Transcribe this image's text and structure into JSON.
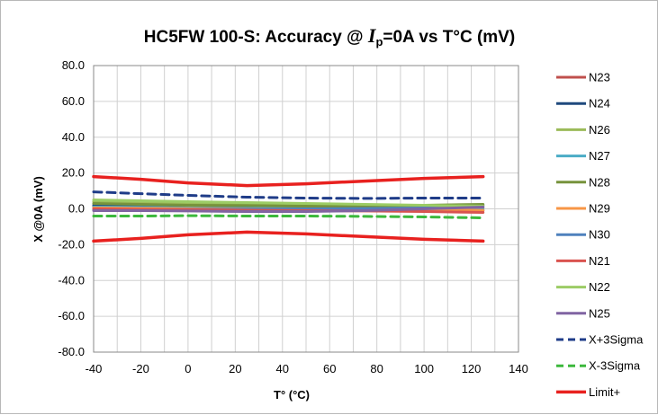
{
  "chart_data": {
    "type": "line",
    "title": {
      "prefix": "HC5FW 100-S:  Accuracy @ ",
      "symbol": "I",
      "subscript": "p",
      "suffix": "=0A vs T°C (mV)"
    },
    "xlabel": "T° (°C)",
    "ylabel": "X @0A  (mV)",
    "xlim": [
      -40,
      140
    ],
    "ylim": [
      -80,
      80
    ],
    "x_ticks": [
      "-40",
      "-20",
      "0",
      "20",
      "40",
      "60",
      "80",
      "100",
      "120",
      "140"
    ],
    "y_ticks": [
      "80.0",
      "60.0",
      "40.0",
      "20.0",
      "0.0",
      "-20.0",
      "-40.0",
      "-60.0",
      "-80.0"
    ],
    "grid": true,
    "legend_position": "right",
    "x": [
      -40,
      -20,
      0,
      25,
      50,
      75,
      100,
      125
    ],
    "series": [
      {
        "name": "N23",
        "color": "#c0504d",
        "dash": "solid",
        "values": [
          1.5,
          1.2,
          0.8,
          0.5,
          0.3,
          0.0,
          -0.5,
          -1.0
        ]
      },
      {
        "name": "N24",
        "color": "#1f497d",
        "dash": "solid",
        "values": [
          2.0,
          1.5,
          1.0,
          0.5,
          0.5,
          0.8,
          1.5,
          2.0
        ]
      },
      {
        "name": "N26",
        "color": "#9bbb59",
        "dash": "solid",
        "values": [
          4.0,
          3.5,
          3.0,
          2.5,
          2.5,
          2.0,
          1.0,
          0.5
        ]
      },
      {
        "name": "N27",
        "color": "#4bacc6",
        "dash": "solid",
        "values": [
          1.0,
          0.8,
          0.5,
          0.3,
          0.2,
          0.0,
          -0.3,
          -0.5
        ]
      },
      {
        "name": "N28",
        "color": "#77933c",
        "dash": "solid",
        "values": [
          3.0,
          2.5,
          2.0,
          1.8,
          1.5,
          1.5,
          2.0,
          2.5
        ]
      },
      {
        "name": "N29",
        "color": "#f79646",
        "dash": "solid",
        "values": [
          0.5,
          0.3,
          0.2,
          0.0,
          -0.2,
          -0.3,
          -0.5,
          -0.8
        ]
      },
      {
        "name": "N30",
        "color": "#4f81bd",
        "dash": "solid",
        "values": [
          -0.5,
          -0.5,
          -0.3,
          -0.2,
          0.0,
          0.2,
          0.5,
          1.0
        ]
      },
      {
        "name": "N21",
        "color": "#d9534f",
        "dash": "solid",
        "values": [
          0.0,
          -0.3,
          -0.5,
          -0.8,
          -1.0,
          -1.2,
          -1.5,
          -2.0
        ]
      },
      {
        "name": "N22",
        "color": "#9ccc65",
        "dash": "solid",
        "values": [
          5.0,
          4.5,
          4.0,
          3.5,
          3.0,
          2.5,
          2.0,
          1.5
        ]
      },
      {
        "name": "N25",
        "color": "#8064a2",
        "dash": "solid",
        "values": [
          -1.0,
          -1.0,
          -1.2,
          -1.5,
          -1.5,
          -1.0,
          0.0,
          1.0
        ]
      },
      {
        "name": "X+3Sigma",
        "color": "#1f3c88",
        "dash": "dashed",
        "values": [
          9.5,
          8.5,
          7.5,
          6.5,
          6.0,
          5.8,
          6.0,
          6.0
        ]
      },
      {
        "name": "X-3Sigma",
        "color": "#3cb83c",
        "dash": "dashed",
        "values": [
          -4.0,
          -4.0,
          -3.8,
          -4.0,
          -4.0,
          -4.2,
          -4.5,
          -5.0
        ]
      },
      {
        "name": "Limit+",
        "color": "#e8211f",
        "dash": "thick",
        "values": [
          18.0,
          16.5,
          14.5,
          13.0,
          14.0,
          15.5,
          17.0,
          18.0
        ]
      },
      {
        "name": "",
        "color": "#e8211f",
        "dash": "thick",
        "values": [
          -18.0,
          -16.5,
          -14.5,
          -13.0,
          -14.0,
          -15.5,
          -17.0,
          -18.0
        ]
      }
    ]
  }
}
